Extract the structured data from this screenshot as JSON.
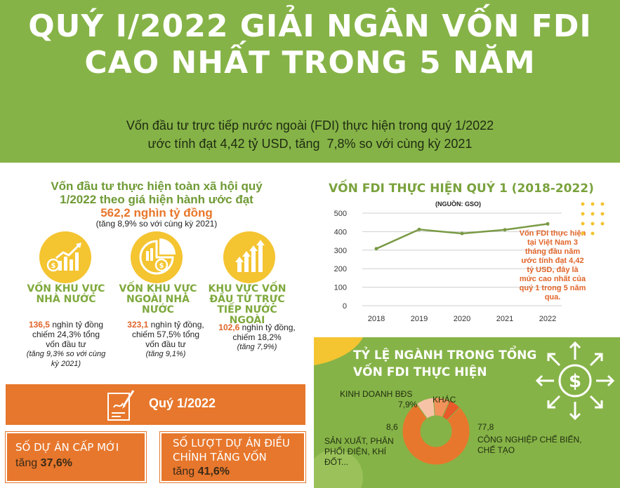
{
  "header": {
    "title_line1": "QUÝ I/2022 GIẢI NGÂN VỐN FDI",
    "title_line2": "CAO NHẤT TRONG 5 NĂM",
    "intro_line1": "Vốn đầu tư trực tiếp nước ngoài (FDI) thực hiện trong quý 1/2022",
    "intro_line2": "ước tính đạt 4,42 tỷ USD, tăng  7,8% so với cùng kỳ 2021"
  },
  "investment": {
    "line1": "Vốn đầu tư thực hiện toàn xã hội quý",
    "line2": "1/2022 theo giá hiện hành ước đạt",
    "total": "562,2 nghìn tỷ đồng",
    "note": "(tăng 8,9% so với cùng kỳ 2021)"
  },
  "sectors": [
    {
      "title_l1": "VỐN KHU VỰC",
      "title_l2": "NHÀ NƯỚC",
      "title_l3": "",
      "title_l4": "",
      "value": "136,5",
      "text_l1": " nghìn tỷ đồng",
      "text_l2": "chiếm 24,3% tổng",
      "text_l3": "vốn đầu tư",
      "growth_l1": "(tăng 9,3% so với cùng",
      "growth_l2": "kỳ 2021)"
    },
    {
      "title_l1": "VỐN KHU VỰC",
      "title_l2": "NGOÀI NHÀ",
      "title_l3": "NƯỚC",
      "title_l4": "",
      "value": "323,1",
      "text_l1": " nghìn tỷ đồng,",
      "text_l2": "chiếm 57,5% tổng",
      "text_l3": "vốn đầu tư",
      "growth_l1": "(tăng 9,1%)",
      "growth_l2": ""
    },
    {
      "title_l1": "KHU VỰC VỐN",
      "title_l2": "ĐẦU TƯ TRỰC",
      "title_l3": "TIẾP NƯỚC",
      "title_l4": "NGOÀI",
      "value": "102,6",
      "text_l1": " nghìn tỷ đồng,",
      "text_l2": "chiếm 18,2%",
      "text_l3": "",
      "growth_l1": "(tăng 7,9%)",
      "growth_l2": ""
    }
  ],
  "quarter": {
    "label": "Quý 1/2022",
    "new_projects_l1": "SỐ DỰ ÁN CẤP MỚI",
    "new_projects_val_prefix": "tăng ",
    "new_projects_val": "37,6%",
    "adjusted_l1": "SỐ LƯỢT DỰ ÁN ĐIỀU",
    "adjusted_l2": "CHỈNH TĂNG VỐN",
    "adjusted_val_prefix": "tăng ",
    "adjusted_val": "41,6%"
  },
  "chart_data": {
    "type": "line",
    "title": "VỐN FDI THỰC HIỆN QUÝ 1 (2018-2022)",
    "source": "(NGUỒN: GSO)",
    "x": [
      "2018",
      "2019",
      "2020",
      "2021",
      "2022"
    ],
    "values": [
      308,
      412,
      390,
      410,
      442
    ],
    "ylim": [
      0,
      500
    ],
    "yticks": [
      "0",
      "50",
      "100",
      "150",
      "200",
      "250",
      "300",
      "350",
      "400",
      "450",
      "500"
    ],
    "grid": true,
    "line_color": "#7a9a45",
    "annotation_l1": "Vốn FDI thực hiện",
    "annotation_l2": "tại Việt Nam 3",
    "annotation_l3": "tháng đầu năm",
    "annotation_l4": "ước tính đạt 4,42",
    "annotation_l5": "tỷ USD, đây là",
    "annotation_l6": "mức cao nhất của",
    "annotation_l7": "quý 1 trong 5 năm",
    "annotation_l8": "qua."
  },
  "sector_share": {
    "title_l1": "TỶ LỆ NGÀNH TRONG TỔNG",
    "title_l2": "VỐN FDI THỰC HIỆN",
    "slices": [
      {
        "label_l1": "CÔNG NGHIỆP CHẾ BIẾN,",
        "label_l2": "CHẾ TẠO",
        "label_l3": "",
        "value": "77,8",
        "color": "#e7772c"
      },
      {
        "label_l1": "SẢN XUẤT, PHÂN",
        "label_l2": "PHỐI ĐIỆN, KHÍ",
        "label_l3": "ĐỐT...",
        "value": "8,6",
        "color": "#f7c3a6"
      },
      {
        "label_l1": "KINH DOANH BĐS",
        "label_l2": "",
        "label_l3": "",
        "value": "7,9%",
        "color": "#f2925a"
      },
      {
        "label_l1": "KHÁC",
        "label_l2": "",
        "label_l3": "",
        "value": "",
        "color": "#e85a2a"
      }
    ]
  },
  "colors": {
    "green": "#86b347",
    "orange": "#e7772c",
    "yellow": "#f4c431"
  }
}
